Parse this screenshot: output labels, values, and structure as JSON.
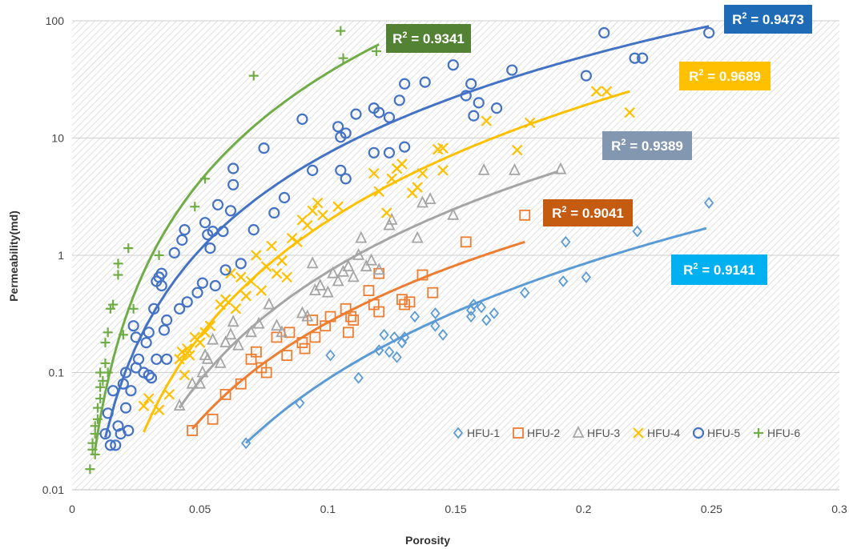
{
  "chart_data": {
    "type": "scatter",
    "title": "",
    "xlabel": "Porosity",
    "ylabel": "Permeability(md)",
    "xlim": [
      0,
      0.3
    ],
    "ylim": [
      0.01,
      100
    ],
    "yscale": "log",
    "grid": true,
    "legend_position": "bottom-right",
    "x_ticks": [
      "0",
      "0.05",
      "0.1",
      "0.15",
      "0.2",
      "0.25",
      "0.3"
    ],
    "y_ticks": [
      "0.01",
      "0.1",
      "1",
      "10",
      "100"
    ],
    "series": [
      {
        "name": "HFU-1",
        "color": "#5b9bd5",
        "marker": "diamond",
        "r2": "0.9141",
        "badge_color": "#00b0f0",
        "trend": {
          "x_range": [
            0.068,
            0.248
          ],
          "y_range": [
            0.025,
            1.7
          ]
        },
        "points": [
          [
            0.068,
            0.025
          ],
          [
            0.089,
            0.055
          ],
          [
            0.101,
            0.14
          ],
          [
            0.112,
            0.09
          ],
          [
            0.12,
            0.155
          ],
          [
            0.122,
            0.21
          ],
          [
            0.124,
            0.15
          ],
          [
            0.126,
            0.2
          ],
          [
            0.127,
            0.135
          ],
          [
            0.129,
            0.18
          ],
          [
            0.13,
            0.2
          ],
          [
            0.134,
            0.3
          ],
          [
            0.142,
            0.25
          ],
          [
            0.142,
            0.32
          ],
          [
            0.145,
            0.21
          ],
          [
            0.156,
            0.34
          ],
          [
            0.156,
            0.3
          ],
          [
            0.157,
            0.38
          ],
          [
            0.16,
            0.36
          ],
          [
            0.162,
            0.28
          ],
          [
            0.165,
            0.32
          ],
          [
            0.177,
            0.48
          ],
          [
            0.192,
            0.6
          ],
          [
            0.193,
            1.3
          ],
          [
            0.201,
            0.65
          ],
          [
            0.221,
            1.6
          ],
          [
            0.249,
            2.8
          ]
        ]
      },
      {
        "name": "HFU-2",
        "color": "#ed7d31",
        "marker": "square",
        "r2": "0.9041",
        "badge_color": "#c55a11",
        "trend": {
          "x_range": [
            0.047,
            0.177
          ],
          "y_range": [
            0.033,
            1.3
          ]
        },
        "points": [
          [
            0.047,
            0.032
          ],
          [
            0.055,
            0.04
          ],
          [
            0.06,
            0.065
          ],
          [
            0.066,
            0.08
          ],
          [
            0.07,
            0.13
          ],
          [
            0.072,
            0.15
          ],
          [
            0.074,
            0.11
          ],
          [
            0.076,
            0.1
          ],
          [
            0.08,
            0.2
          ],
          [
            0.084,
            0.14
          ],
          [
            0.085,
            0.22
          ],
          [
            0.09,
            0.18
          ],
          [
            0.091,
            0.16
          ],
          [
            0.094,
            0.28
          ],
          [
            0.095,
            0.2
          ],
          [
            0.099,
            0.25
          ],
          [
            0.101,
            0.3
          ],
          [
            0.107,
            0.35
          ],
          [
            0.108,
            0.22
          ],
          [
            0.109,
            0.3
          ],
          [
            0.11,
            0.28
          ],
          [
            0.116,
            0.5
          ],
          [
            0.118,
            0.38
          ],
          [
            0.12,
            0.33
          ],
          [
            0.12,
            0.7
          ],
          [
            0.129,
            0.42
          ],
          [
            0.13,
            0.38
          ],
          [
            0.132,
            0.4
          ],
          [
            0.137,
            0.68
          ],
          [
            0.141,
            0.48
          ],
          [
            0.154,
            1.3
          ],
          [
            0.177,
            2.2
          ]
        ]
      },
      {
        "name": "HFU-3",
        "color": "#a5a5a5",
        "marker": "triangle",
        "r2": "0.9389",
        "badge_color": "#8497b0",
        "trend": {
          "x_range": [
            0.042,
            0.19
          ],
          "y_range": [
            0.05,
            5.2
          ]
        },
        "points": [
          [
            0.042,
            0.052
          ],
          [
            0.047,
            0.08
          ],
          [
            0.05,
            0.08
          ],
          [
            0.051,
            0.1
          ],
          [
            0.052,
            0.14
          ],
          [
            0.053,
            0.13
          ],
          [
            0.055,
            0.19
          ],
          [
            0.058,
            0.12
          ],
          [
            0.06,
            0.18
          ],
          [
            0.062,
            0.21
          ],
          [
            0.063,
            0.27
          ],
          [
            0.065,
            0.17
          ],
          [
            0.07,
            0.22
          ],
          [
            0.073,
            0.26
          ],
          [
            0.077,
            0.38
          ],
          [
            0.08,
            0.25
          ],
          [
            0.082,
            0.22
          ],
          [
            0.09,
            0.32
          ],
          [
            0.092,
            0.3
          ],
          [
            0.094,
            0.85
          ],
          [
            0.095,
            0.5
          ],
          [
            0.097,
            0.55
          ],
          [
            0.1,
            0.48
          ],
          [
            0.102,
            0.7
          ],
          [
            0.104,
            0.6
          ],
          [
            0.106,
            0.72
          ],
          [
            0.108,
            0.8
          ],
          [
            0.11,
            0.65
          ],
          [
            0.112,
            1.0
          ],
          [
            0.113,
            1.4
          ],
          [
            0.115,
            0.8
          ],
          [
            0.117,
            0.9
          ],
          [
            0.12,
            0.75
          ],
          [
            0.124,
            1.8
          ],
          [
            0.125,
            2.0
          ],
          [
            0.135,
            1.4
          ],
          [
            0.137,
            2.8
          ],
          [
            0.14,
            3.0
          ],
          [
            0.149,
            2.2
          ],
          [
            0.161,
            5.3
          ],
          [
            0.173,
            5.3
          ],
          [
            0.191,
            5.4
          ]
        ]
      },
      {
        "name": "HFU-4",
        "color": "#ffc000",
        "marker": "x",
        "r2": "0.9689",
        "badge_color": "#ffc000",
        "trend": {
          "x_range": [
            0.028,
            0.218
          ],
          "y_range": [
            0.031,
            25
          ]
        },
        "points": [
          [
            0.028,
            0.052
          ],
          [
            0.03,
            0.06
          ],
          [
            0.034,
            0.048
          ],
          [
            0.038,
            0.065
          ],
          [
            0.042,
            0.13
          ],
          [
            0.043,
            0.15
          ],
          [
            0.044,
            0.095
          ],
          [
            0.045,
            0.16
          ],
          [
            0.046,
            0.14
          ],
          [
            0.048,
            0.2
          ],
          [
            0.05,
            0.18
          ],
          [
            0.052,
            0.22
          ],
          [
            0.054,
            0.25
          ],
          [
            0.058,
            0.38
          ],
          [
            0.06,
            0.42
          ],
          [
            0.062,
            0.7
          ],
          [
            0.064,
            0.35
          ],
          [
            0.066,
            0.65
          ],
          [
            0.068,
            0.45
          ],
          [
            0.07,
            0.6
          ],
          [
            0.072,
            1.0
          ],
          [
            0.074,
            0.5
          ],
          [
            0.076,
            0.8
          ],
          [
            0.078,
            1.2
          ],
          [
            0.08,
            0.7
          ],
          [
            0.082,
            0.9
          ],
          [
            0.084,
            0.65
          ],
          [
            0.086,
            1.4
          ],
          [
            0.088,
            1.3
          ],
          [
            0.09,
            2.0
          ],
          [
            0.092,
            1.8
          ],
          [
            0.094,
            2.4
          ],
          [
            0.096,
            2.8
          ],
          [
            0.098,
            2.2
          ],
          [
            0.104,
            2.6
          ],
          [
            0.118,
            5.0
          ],
          [
            0.12,
            3.5
          ],
          [
            0.123,
            2.3
          ],
          [
            0.125,
            4.5
          ],
          [
            0.127,
            5.5
          ],
          [
            0.129,
            6.0
          ],
          [
            0.133,
            3.4
          ],
          [
            0.135,
            3.8
          ],
          [
            0.137,
            5.0
          ],
          [
            0.143,
            8.0
          ],
          [
            0.145,
            5.3
          ],
          [
            0.145,
            8.2
          ],
          [
            0.162,
            14.0
          ],
          [
            0.174,
            7.9
          ],
          [
            0.179,
            13.5
          ],
          [
            0.205,
            25.0
          ],
          [
            0.209,
            25.0
          ],
          [
            0.218,
            16.5
          ]
        ]
      },
      {
        "name": "HFU-5",
        "color": "#4472c4",
        "marker": "circle",
        "r2": "0.9473",
        "badge_color": "#1f6bb5",
        "trend": {
          "x_range": [
            0.013,
            0.249
          ],
          "y_range": [
            0.028,
            90
          ]
        },
        "points": [
          [
            0.013,
            0.03
          ],
          [
            0.014,
            0.045
          ],
          [
            0.015,
            0.024
          ],
          [
            0.016,
            0.07
          ],
          [
            0.017,
            0.024
          ],
          [
            0.018,
            0.035
          ],
          [
            0.019,
            0.03
          ],
          [
            0.02,
            0.08
          ],
          [
            0.021,
            0.1
          ],
          [
            0.021,
            0.05
          ],
          [
            0.022,
            0.032
          ],
          [
            0.023,
            0.07
          ],
          [
            0.024,
            0.25
          ],
          [
            0.025,
            0.2
          ],
          [
            0.025,
            0.11
          ],
          [
            0.026,
            0.13
          ],
          [
            0.028,
            0.1
          ],
          [
            0.029,
            0.18
          ],
          [
            0.03,
            0.22
          ],
          [
            0.03,
            0.095
          ],
          [
            0.031,
            0.09
          ],
          [
            0.032,
            0.35
          ],
          [
            0.033,
            0.6
          ],
          [
            0.033,
            0.13
          ],
          [
            0.034,
            0.65
          ],
          [
            0.035,
            0.7
          ],
          [
            0.035,
            0.55
          ],
          [
            0.036,
            0.23
          ],
          [
            0.037,
            0.28
          ],
          [
            0.037,
            0.13
          ],
          [
            0.04,
            1.05
          ],
          [
            0.042,
            0.35
          ],
          [
            0.043,
            1.35
          ],
          [
            0.044,
            1.65
          ],
          [
            0.045,
            0.4
          ],
          [
            0.049,
            0.48
          ],
          [
            0.051,
            0.58
          ],
          [
            0.052,
            1.9
          ],
          [
            0.053,
            1.5
          ],
          [
            0.054,
            1.15
          ],
          [
            0.055,
            1.6
          ],
          [
            0.056,
            0.55
          ],
          [
            0.057,
            2.7
          ],
          [
            0.059,
            1.6
          ],
          [
            0.06,
            0.75
          ],
          [
            0.062,
            2.4
          ],
          [
            0.063,
            5.5
          ],
          [
            0.063,
            4.0
          ],
          [
            0.066,
            0.85
          ],
          [
            0.071,
            1.65
          ],
          [
            0.075,
            8.2
          ],
          [
            0.079,
            2.3
          ],
          [
            0.083,
            3.1
          ],
          [
            0.09,
            14.5
          ],
          [
            0.094,
            5.3
          ],
          [
            0.104,
            12.5
          ],
          [
            0.105,
            10.2
          ],
          [
            0.105,
            5.3
          ],
          [
            0.107,
            11.0
          ],
          [
            0.107,
            4.5
          ],
          [
            0.111,
            16.0
          ],
          [
            0.118,
            7.5
          ],
          [
            0.118,
            18.0
          ],
          [
            0.12,
            16.5
          ],
          [
            0.124,
            7.5
          ],
          [
            0.124,
            15.0
          ],
          [
            0.128,
            21.0
          ],
          [
            0.13,
            29.0
          ],
          [
            0.13,
            8.4
          ],
          [
            0.138,
            30.0
          ],
          [
            0.149,
            42.0
          ],
          [
            0.154,
            23.0
          ],
          [
            0.156,
            29.0
          ],
          [
            0.157,
            15.5
          ],
          [
            0.159,
            20.0
          ],
          [
            0.166,
            18.0
          ],
          [
            0.172,
            38.0
          ],
          [
            0.201,
            34.0
          ],
          [
            0.208,
            79.0
          ],
          [
            0.22,
            48.0
          ],
          [
            0.223,
            48.0
          ],
          [
            0.249,
            79.0
          ]
        ]
      },
      {
        "name": "HFU-6",
        "color": "#70ad47",
        "marker": "plus",
        "r2": "0.9341",
        "badge_color": "#548235",
        "trend": {
          "x_range": [
            0.009,
            0.12
          ],
          "y_range": [
            0.022,
            63
          ]
        },
        "points": [
          [
            0.007,
            0.015
          ],
          [
            0.008,
            0.022
          ],
          [
            0.008,
            0.025
          ],
          [
            0.009,
            0.03
          ],
          [
            0.009,
            0.035
          ],
          [
            0.009,
            0.02
          ],
          [
            0.01,
            0.04
          ],
          [
            0.01,
            0.05
          ],
          [
            0.011,
            0.06
          ],
          [
            0.011,
            0.075
          ],
          [
            0.011,
            0.1
          ],
          [
            0.012,
            0.085
          ],
          [
            0.013,
            0.12
          ],
          [
            0.013,
            0.18
          ],
          [
            0.014,
            0.22
          ],
          [
            0.014,
            0.1
          ],
          [
            0.015,
            0.35
          ],
          [
            0.016,
            0.38
          ],
          [
            0.018,
            0.85
          ],
          [
            0.018,
            0.68
          ],
          [
            0.02,
            0.21
          ],
          [
            0.022,
            1.15
          ],
          [
            0.024,
            0.35
          ],
          [
            0.034,
            1.0
          ],
          [
            0.048,
            2.6
          ],
          [
            0.052,
            4.5
          ],
          [
            0.071,
            34.0
          ],
          [
            0.105,
            82.0
          ],
          [
            0.106,
            48.0
          ],
          [
            0.119,
            55.0
          ]
        ]
      }
    ]
  }
}
